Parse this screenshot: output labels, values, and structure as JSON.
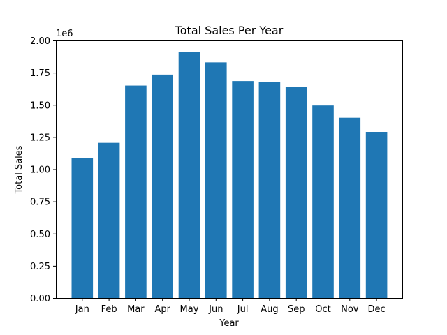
{
  "chart_data": {
    "type": "bar",
    "title": "Total Sales Per Year",
    "xlabel": "Year",
    "ylabel": "Total Sales",
    "y_offset_label": "1e6",
    "categories": [
      "Jan",
      "Feb",
      "Mar",
      "Apr",
      "May",
      "Jun",
      "Jul",
      "Aug",
      "Sep",
      "Oct",
      "Nov",
      "Dec"
    ],
    "values": [
      1085000,
      1205000,
      1650000,
      1735000,
      1910000,
      1830000,
      1685000,
      1675000,
      1640000,
      1495000,
      1400000,
      1290000
    ],
    "y_ticks": [
      0,
      250000,
      500000,
      750000,
      1000000,
      1250000,
      1500000,
      1750000,
      2000000
    ],
    "y_tick_labels": [
      "0.00",
      "0.25",
      "0.50",
      "0.75",
      "1.00",
      "1.25",
      "1.50",
      "1.75",
      "2.00"
    ],
    "ylim": [
      0,
      2000000
    ],
    "bar_color": "#1f77b4",
    "grid": false,
    "legend": "none"
  }
}
